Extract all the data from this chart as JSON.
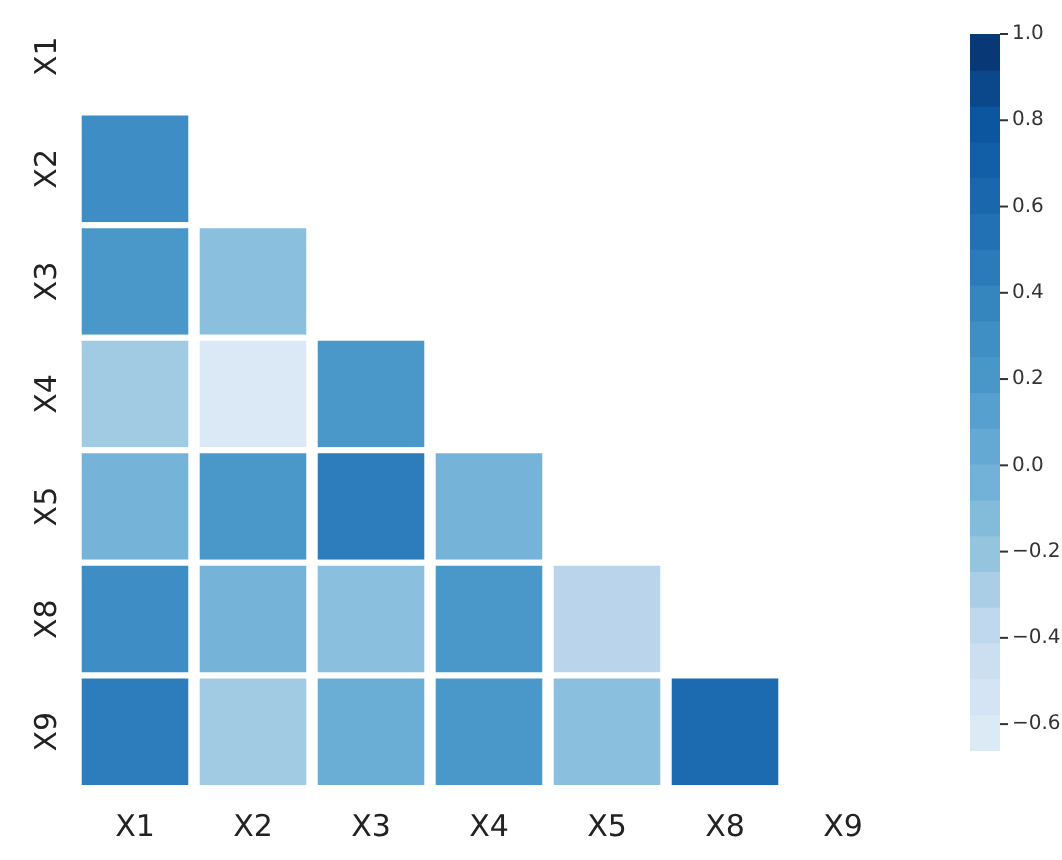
{
  "chart_data": {
    "type": "heatmap",
    "categories": [
      "X1",
      "X2",
      "X3",
      "X4",
      "X5",
      "X8",
      "X9"
    ],
    "y_categories": [
      "X1",
      "X2",
      "X3",
      "X4",
      "X5",
      "X8",
      "X9"
    ],
    "cells": [
      [
        null,
        null,
        null,
        null,
        null,
        null,
        null
      ],
      [
        0.3,
        null,
        null,
        null,
        null,
        null,
        null
      ],
      [
        0.2,
        -0.15,
        null,
        null,
        null,
        null,
        null
      ],
      [
        -0.25,
        -0.6,
        0.2,
        null,
        null,
        null,
        null
      ],
      [
        -0.05,
        0.2,
        0.45,
        -0.05,
        null,
        null,
        null
      ],
      [
        0.3,
        -0.05,
        -0.15,
        0.2,
        -0.35,
        null,
        null
      ],
      [
        0.45,
        -0.25,
        0.0,
        0.2,
        -0.15,
        0.6,
        null
      ]
    ],
    "clim": [
      -0.66,
      1.0
    ],
    "cticks": [
      {
        "value": -0.6,
        "label": "−0.6"
      },
      {
        "value": -0.4,
        "label": "−0.4"
      },
      {
        "value": -0.2,
        "label": "−0.2"
      },
      {
        "value": 0,
        "label": "0.0"
      },
      {
        "value": 0.2,
        "label": "0.2"
      },
      {
        "value": 0.4,
        "label": "0.4"
      },
      {
        "value": 0.6,
        "label": "0.6"
      },
      {
        "value": 0.8,
        "label": "0.8"
      },
      {
        "value": 1,
        "label": "1.0"
      }
    ]
  }
}
